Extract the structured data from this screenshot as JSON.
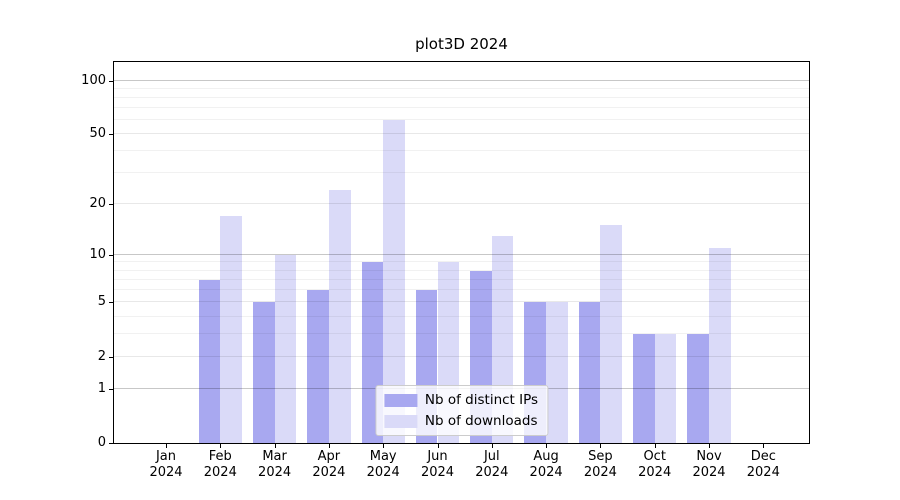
{
  "figure": {
    "background": "#ffffff"
  },
  "chart_data": {
    "type": "bar",
    "title": "plot3D 2024",
    "x_categories": [
      "Jan 2024",
      "Feb 2024",
      "Mar 2024",
      "Apr 2024",
      "May 2024",
      "Jun 2024",
      "Jul 2024",
      "Aug 2024",
      "Sep 2024",
      "Oct 2024",
      "Nov 2024",
      "Dec 2024"
    ],
    "series": [
      {
        "name": "Nb of distinct IPs",
        "color": "#a8a8f0",
        "values": [
          0,
          7,
          5,
          6,
          9,
          6,
          8,
          5,
          5,
          3,
          3,
          0
        ]
      },
      {
        "name": "Nb of downloads",
        "color": "#dadaf8",
        "values": [
          0,
          17,
          10,
          24,
          60,
          9,
          13,
          5,
          15,
          3,
          11,
          0
        ]
      }
    ],
    "xlabel": "",
    "ylabel": "",
    "yscale": "log1p",
    "ylim": [
      0,
      126
    ],
    "yticks_major": [
      0,
      1,
      2,
      5,
      10,
      20,
      50,
      100
    ],
    "yticks_strong_grid": [
      1,
      10,
      100
    ],
    "yticks_minor": [
      3,
      4,
      6,
      7,
      8,
      9,
      30,
      40,
      60,
      70,
      80,
      90
    ],
    "grid": "horizontal",
    "legend_position": "lower center",
    "legend_border_color": "#cccccc",
    "spine_color": "#000000"
  }
}
